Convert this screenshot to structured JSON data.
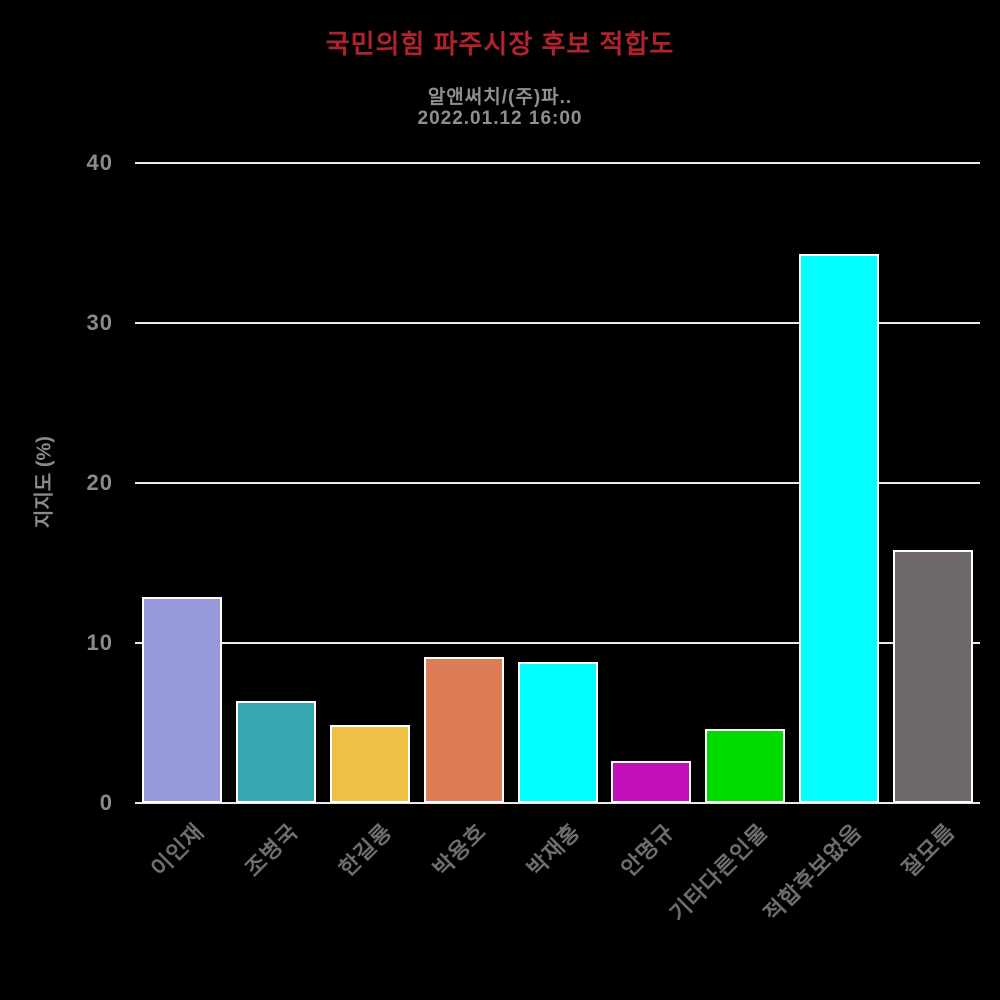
{
  "title": "국민의힘 파주시장 후보 적합도",
  "subtitle": {
    "source": "알앤써치/(주)파..",
    "datetime": "2022.01.12 16:00"
  },
  "colors": {
    "background": "#000000",
    "title_text": "#B0222C",
    "subtitle_text": "#8F8F8F",
    "ytick_text": "#8A8A8A",
    "xlabel_text": "#6E6E6E",
    "ylabel_text": "#8A8A8A",
    "gridline": "#E8E8E8",
    "bar_stroke": "#FFFFFF"
  },
  "chart_data": {
    "type": "bar",
    "title": "국민의힘 파주시장 후보 적합도",
    "subtitle": "알앤써치/(주)파.. 2022.01.12 16:00",
    "categories": [
      "이인재",
      "조병국",
      "한길룡",
      "박용호",
      "박재홍",
      "안명규",
      "기타다른인물",
      "적합후보없음",
      "잘모름"
    ],
    "values": [
      12.9,
      6.4,
      4.9,
      9.1,
      8.8,
      2.6,
      4.6,
      34.3,
      15.8
    ],
    "bar_colors": [
      "#9898DC",
      "#35A8B2",
      "#F0BF45",
      "#DD7D58",
      "#00FFFF",
      "#C30FB8",
      "#00DC00",
      "#00FFFF",
      "#6F6868"
    ],
    "xlabel": "",
    "ylabel": "지지도 (%)",
    "ylim": [
      0,
      40
    ],
    "yticks": [
      0,
      10,
      20,
      30,
      40
    ],
    "grid": true,
    "legend": false,
    "xlabel_rotation_deg": 45
  }
}
